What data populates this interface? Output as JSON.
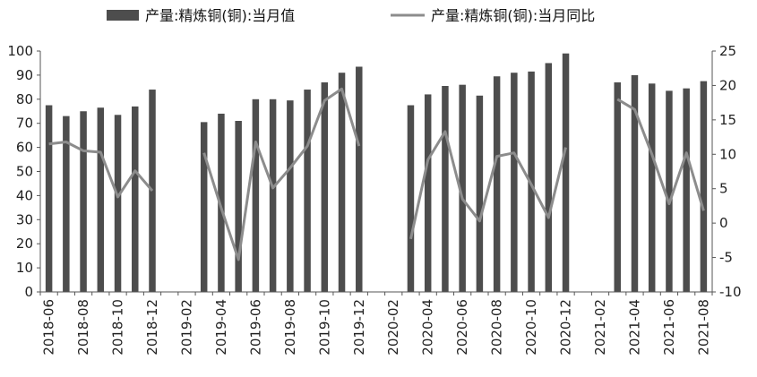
{
  "chart_data": {
    "type": "bar+line",
    "x": [
      "2018-06",
      "2018-07",
      "2018-08",
      "2018-09",
      "2018-10",
      "2018-11",
      "2018-12",
      "2019-01",
      "2019-02",
      "2019-03",
      "2019-04",
      "2019-05",
      "2019-06",
      "2019-07",
      "2019-08",
      "2019-09",
      "2019-10",
      "2019-11",
      "2019-12",
      "2020-01",
      "2020-02",
      "2020-03",
      "2020-04",
      "2020-05",
      "2020-06",
      "2020-07",
      "2020-08",
      "2020-09",
      "2020-10",
      "2020-11",
      "2020-12",
      "2021-01",
      "2021-02",
      "2021-03",
      "2021-04",
      "2021-05",
      "2021-06",
      "2021-07",
      "2021-08"
    ],
    "x_tick_labels": [
      "2018-06",
      "2018-08",
      "2018-10",
      "2018-12",
      "2019-02",
      "2019-04",
      "2019-06",
      "2019-08",
      "2019-10",
      "2019-12",
      "2020-02",
      "2020-04",
      "2020-06",
      "2020-08",
      "2020-10",
      "2020-12",
      "2021-02",
      "2021-04",
      "2021-06",
      "2021-08"
    ],
    "series": [
      {
        "name": "产量:精炼铜(铜):当月值",
        "type": "bar",
        "axis": "left",
        "color": "#4d4d4d",
        "values": [
          77.5,
          73,
          75,
          76.5,
          73.5,
          77,
          84,
          null,
          null,
          70.5,
          74,
          71,
          80,
          80,
          79.5,
          84,
          87,
          91,
          93.5,
          null,
          null,
          77.5,
          82,
          85.5,
          86,
          81.5,
          89.5,
          91,
          91.5,
          95,
          99,
          null,
          null,
          87,
          90,
          86.5,
          83.5,
          84.5,
          87.5
        ]
      },
      {
        "name": "产量:精炼铜(铜):当月同比",
        "type": "line",
        "axis": "right",
        "color": "#8c8c8c",
        "values": [
          11.5,
          11.8,
          10.5,
          10.3,
          3.8,
          7.6,
          4.7,
          null,
          null,
          10.2,
          2.2,
          -5.3,
          11.8,
          5.1,
          8.0,
          11.2,
          17.8,
          19.5,
          11.2,
          null,
          null,
          -2.3,
          9.2,
          13.3,
          3.5,
          0.3,
          9.7,
          10.2,
          5.6,
          0.8,
          11.0,
          null,
          null,
          18.0,
          16.5,
          10.0,
          2.8,
          10.2,
          1.8
        ]
      }
    ],
    "y_left": {
      "ylim": [
        0,
        100
      ],
      "ticks": [
        0,
        10,
        20,
        30,
        40,
        50,
        60,
        70,
        80,
        90,
        100
      ]
    },
    "y_right": {
      "ylim": [
        -10,
        25
      ],
      "ticks": [
        -10,
        -5,
        0,
        5,
        10,
        15,
        20,
        25
      ]
    },
    "legend": "top",
    "grid": false
  }
}
